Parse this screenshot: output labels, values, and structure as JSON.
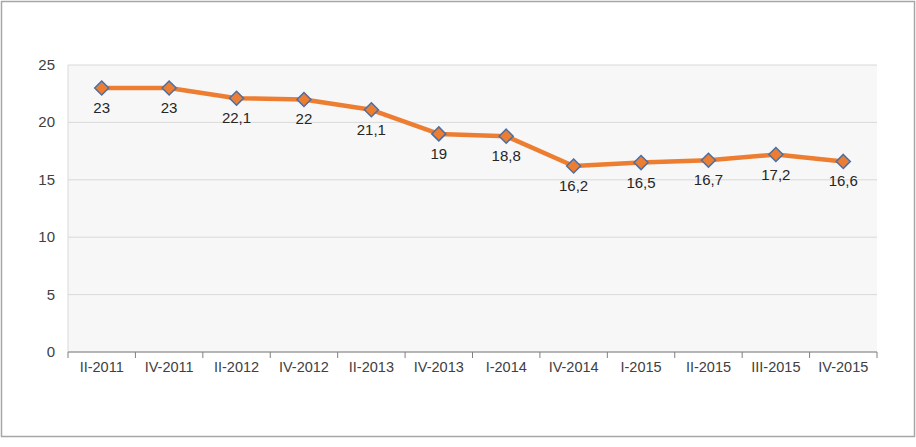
{
  "chart_data": {
    "type": "line",
    "categories": [
      "II-2011",
      "IV-2011",
      "II-2012",
      "IV-2012",
      "II-2013",
      "IV-2013",
      "I-2014",
      "IV-2014",
      "I-2015",
      "II-2015",
      "III-2015",
      "IV-2015"
    ],
    "values": [
      23,
      23,
      22.1,
      22,
      21.1,
      19,
      18.8,
      16.2,
      16.5,
      16.7,
      17.2,
      16.6
    ],
    "value_labels": [
      "23",
      "23",
      "22,1",
      "22",
      "21,1",
      "19",
      "18,8",
      "16,2",
      "16,5",
      "16,7",
      "17,2",
      "16,6"
    ],
    "color": "#ED7D31",
    "marker": "diamond",
    "ylim": [
      0,
      25
    ],
    "yticks": [
      0,
      5,
      10,
      15,
      20,
      25
    ],
    "grid": true,
    "data_labels": true
  }
}
